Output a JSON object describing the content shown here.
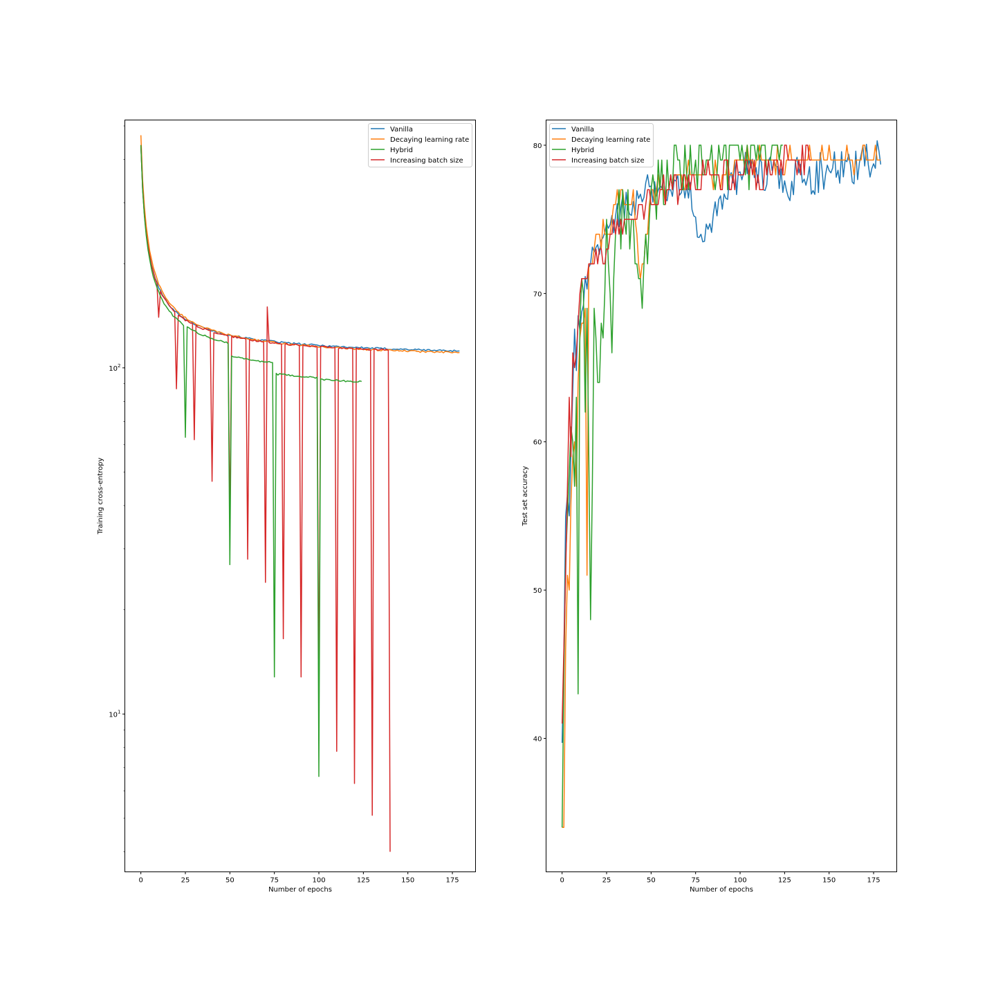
{
  "chart_data": [
    {
      "type": "line",
      "xlabel": "Number of epochs",
      "ylabel": "Training cross-entropy",
      "y_scale": "log",
      "xlim": [
        -9,
        188
      ],
      "ylim": [
        3.5,
        520
      ],
      "x_ticks": [
        0,
        25,
        50,
        75,
        100,
        125,
        150,
        175
      ],
      "y_major_ticks": [
        {
          "value": 10,
          "base": "10",
          "exp": "1"
        },
        {
          "value": 100,
          "base": "10",
          "exp": "2"
        }
      ],
      "legend_position": "upper right",
      "series": [
        {
          "name": "Vanilla",
          "color": "#1f77b4",
          "x_end": 179,
          "start": 440,
          "plateau": 105,
          "bumps": [],
          "dips": []
        },
        {
          "name": "Decaying learning rate",
          "color": "#ff7f0e",
          "x_end": 179,
          "start": 470,
          "plateau": 103,
          "bumps": [],
          "dips": []
        },
        {
          "name": "Hybrid",
          "color": "#2ca02c",
          "x_end": 124,
          "start": 440,
          "plateau": 98,
          "bumps": [],
          "drops": [
            [
              25,
              1.0
            ],
            [
              50,
              0.92
            ],
            [
              75,
              0.93
            ],
            [
              100,
              0.99
            ]
          ],
          "dips": [
            [
              25,
              63
            ],
            [
              50,
              27
            ],
            [
              75,
              12.8
            ],
            [
              100,
              6.6
            ]
          ]
        },
        {
          "name": "Increasing batch size",
          "color": "#d62728",
          "x_end": 140,
          "start": 440,
          "plateau": 104,
          "bumps": [
            [
              71,
              150
            ]
          ],
          "dips": [
            [
              10,
              140
            ],
            [
              20,
              87
            ],
            [
              30,
              62
            ],
            [
              40,
              47
            ],
            [
              50,
              35
            ],
            [
              60,
              28
            ],
            [
              70,
              24
            ],
            [
              80,
              16.5
            ],
            [
              90,
              12.8
            ],
            [
              100,
              10.2
            ],
            [
              110,
              7.8
            ],
            [
              120,
              6.3
            ],
            [
              130,
              5.1
            ],
            [
              140,
              4.0
            ]
          ]
        }
      ]
    },
    {
      "type": "line",
      "xlabel": "Number of epochs",
      "ylabel": "Test set accuracy",
      "xlim": [
        -9,
        188
      ],
      "ylim": [
        31,
        81.7
      ],
      "x_ticks": [
        0,
        25,
        50,
        75,
        100,
        125,
        150,
        175
      ],
      "y_ticks": [
        40,
        50,
        60,
        70,
        80
      ],
      "legend_position": "upper left",
      "series": [
        {
          "name": "Vanilla",
          "color": "#1f77b4",
          "x_end": 179,
          "start": 39.7,
          "final": 78.7,
          "noise": 1.1,
          "quantized": false,
          "points": [
            [
              0,
              39.7
            ],
            [
              1,
              45.5
            ],
            [
              2,
              55
            ],
            [
              3,
              56.4
            ],
            [
              4,
              55
            ],
            [
              5,
              59.4
            ],
            [
              6,
              63.5
            ],
            [
              7,
              67.6
            ],
            [
              8,
              64.8
            ],
            [
              9,
              68.5
            ],
            [
              10,
              67.5
            ],
            [
              12,
              69.2
            ],
            [
              14,
              70.3
            ],
            [
              16,
              72.0
            ],
            [
              18,
              72.8
            ],
            [
              20,
              73.3
            ],
            [
              22,
              73.6
            ],
            [
              24,
              74.1
            ],
            [
              26,
              74.4
            ],
            [
              30,
              75.2
            ],
            [
              33,
              75.8
            ],
            [
              40,
              76.2
            ],
            [
              44,
              76.7
            ],
            [
              49,
              77.2
            ],
            [
              60,
              77.0
            ],
            [
              70,
              77.3
            ],
            [
              78,
              74.0
            ],
            [
              100,
              78.2
            ],
            [
              125,
              77.6
            ],
            [
              150,
              78.3
            ],
            [
              170,
              78.6
            ],
            [
              178,
              79.6
            ],
            [
              179,
              78.7
            ]
          ]
        },
        {
          "name": "Decaying learning rate",
          "color": "#ff7f0e",
          "x_end": 179,
          "start": 34.0,
          "final": 79.0,
          "noise": 0.7,
          "quantized": true,
          "points": [
            [
              0,
              34
            ],
            [
              1,
              34
            ],
            [
              2,
              46
            ],
            [
              3,
              51
            ],
            [
              4,
              50
            ],
            [
              5,
              56
            ],
            [
              6,
              59
            ],
            [
              7,
              60
            ],
            [
              8,
              57
            ],
            [
              9,
              64
            ],
            [
              10,
              67
            ],
            [
              12,
              68
            ],
            [
              13,
              69
            ],
            [
              14,
              51
            ],
            [
              15,
              72
            ],
            [
              17,
              72
            ],
            [
              20,
              74
            ],
            [
              25,
              74
            ],
            [
              30,
              76
            ],
            [
              35,
              76
            ],
            [
              40,
              77
            ],
            [
              44,
              71
            ],
            [
              50,
              77
            ],
            [
              60,
              77
            ],
            [
              70,
              78
            ],
            [
              90,
              78
            ],
            [
              100,
              79
            ],
            [
              130,
              79
            ],
            [
              179,
              79
            ]
          ]
        },
        {
          "name": "Hybrid",
          "color": "#2ca02c",
          "x_end": 124,
          "start": 34.0,
          "final": 80.0,
          "noise": 2.3,
          "quantized": true,
          "points": [
            [
              0,
              34
            ],
            [
              1,
              44
            ],
            [
              2,
              52
            ],
            [
              3,
              55
            ],
            [
              4,
              58
            ],
            [
              5,
              61
            ],
            [
              6,
              60
            ],
            [
              7,
              57
            ],
            [
              8,
              63
            ],
            [
              9,
              43
            ],
            [
              10,
              68
            ],
            [
              12,
              70
            ],
            [
              13,
              62
            ],
            [
              14,
              69
            ],
            [
              16,
              48
            ],
            [
              18,
              69
            ],
            [
              20,
              64
            ],
            [
              22,
              68
            ],
            [
              24,
              70
            ],
            [
              25,
              75
            ],
            [
              28,
              66
            ],
            [
              30,
              74
            ],
            [
              35,
              75
            ],
            [
              40,
              75
            ],
            [
              45,
              69
            ],
            [
              50,
              77
            ],
            [
              55,
              77
            ],
            [
              60,
              77
            ],
            [
              66,
              79
            ],
            [
              70,
              78
            ],
            [
              75,
              79
            ],
            [
              90,
              79
            ],
            [
              97,
              80
            ],
            [
              100,
              79
            ],
            [
              110,
              80
            ],
            [
              124,
              80
            ]
          ]
        },
        {
          "name": "Increasing batch size",
          "color": "#d62728",
          "x_end": 140,
          "start": 41.0,
          "final": 79.0,
          "noise": 1.0,
          "quantized": true,
          "points": [
            [
              0,
              41
            ],
            [
              1,
              46
            ],
            [
              2,
              51
            ],
            [
              3,
              57
            ],
            [
              4,
              63
            ],
            [
              5,
              59
            ],
            [
              6,
              66
            ],
            [
              7,
              65
            ],
            [
              8,
              66
            ],
            [
              9,
              68
            ],
            [
              10,
              70
            ],
            [
              12,
              71
            ],
            [
              14,
              71
            ],
            [
              16,
              72
            ],
            [
              20,
              72
            ],
            [
              25,
              73
            ],
            [
              30,
              74
            ],
            [
              35,
              75
            ],
            [
              40,
              75
            ],
            [
              45,
              76
            ],
            [
              50,
              76
            ],
            [
              55,
              77
            ],
            [
              60,
              77
            ],
            [
              70,
              77
            ],
            [
              80,
              78
            ],
            [
              100,
              78
            ],
            [
              110,
              78
            ],
            [
              120,
              79
            ],
            [
              140,
              79
            ]
          ]
        }
      ]
    }
  ]
}
